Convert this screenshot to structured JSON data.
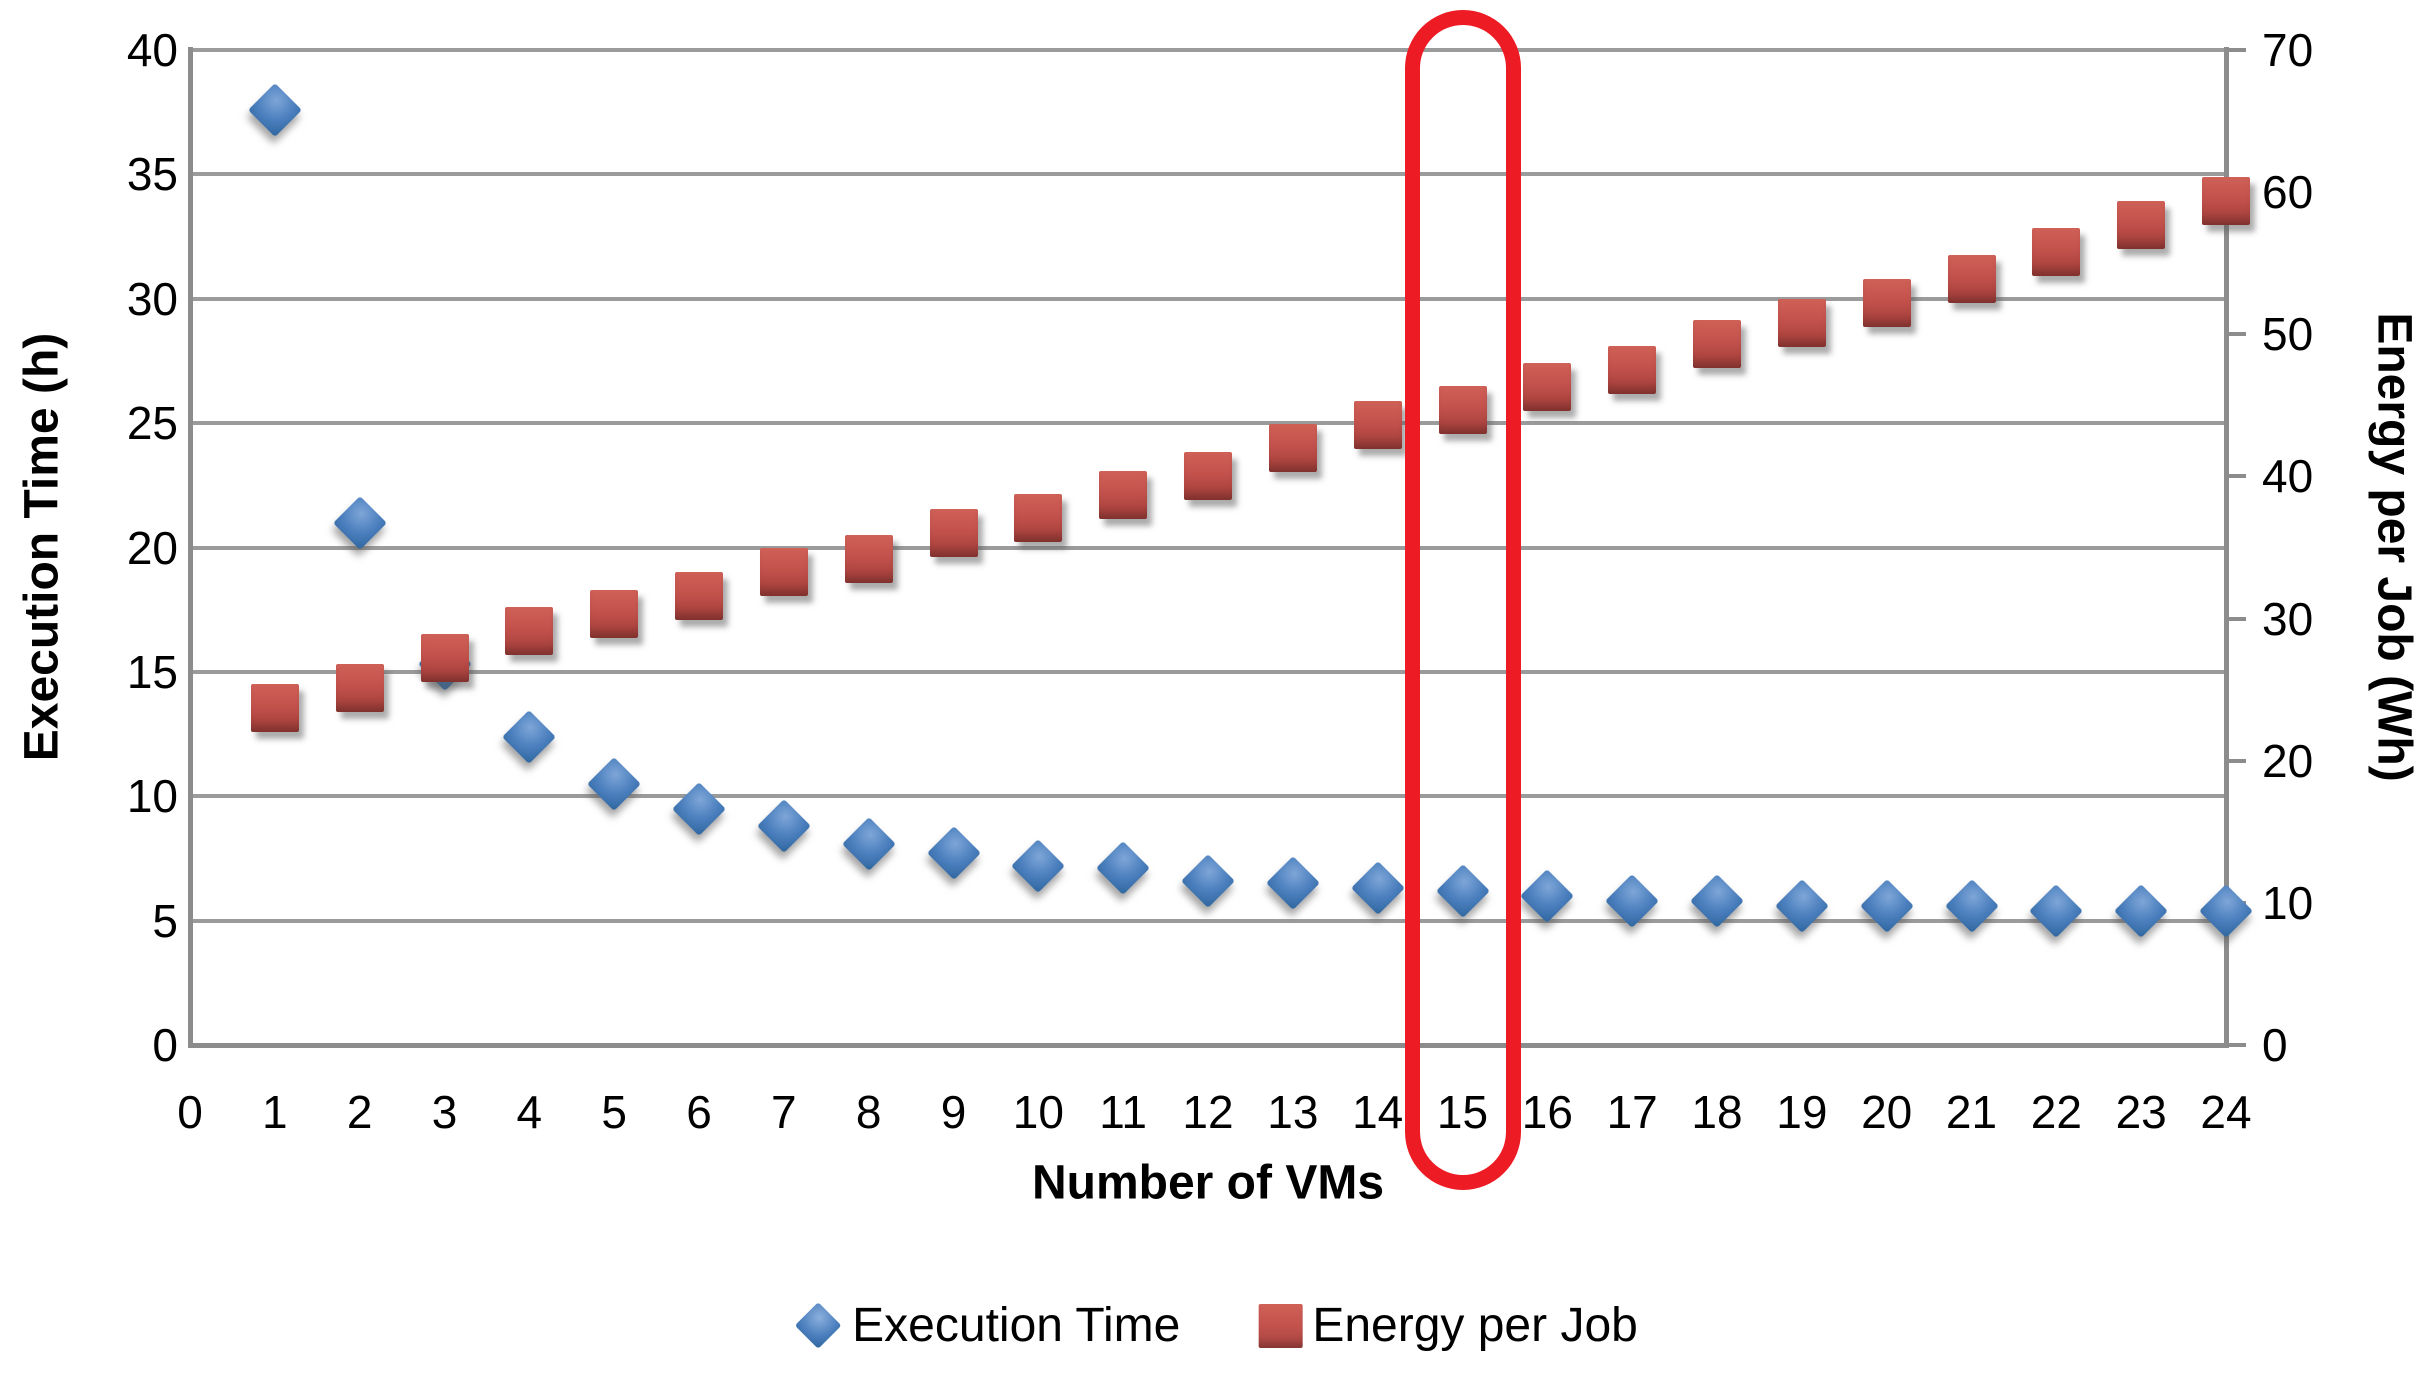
{
  "chart_data": {
    "type": "scatter",
    "title": "",
    "xlabel": "Number of VMs",
    "ylabel_left": "Execution Time (h)",
    "ylabel_right": "Energy per Job (Wh)",
    "x_range": [
      0,
      24
    ],
    "y_left_range": [
      0,
      40
    ],
    "y_right_range": [
      0,
      70
    ],
    "x_ticks": [
      0,
      1,
      2,
      3,
      4,
      5,
      6,
      7,
      8,
      9,
      10,
      11,
      12,
      13,
      14,
      15,
      16,
      17,
      18,
      19,
      20,
      21,
      22,
      23,
      24
    ],
    "y_left_ticks": [
      0,
      5,
      10,
      15,
      20,
      25,
      30,
      35,
      40
    ],
    "y_right_ticks": [
      0,
      10,
      20,
      30,
      40,
      50,
      60,
      70
    ],
    "grid": true,
    "legend_position": "bottom",
    "x": [
      1,
      2,
      3,
      4,
      5,
      6,
      7,
      8,
      9,
      10,
      11,
      12,
      13,
      14,
      15,
      16,
      17,
      18,
      19,
      20,
      21,
      22,
      23,
      24
    ],
    "series": [
      {
        "name": "Execution Time",
        "axis": "left",
        "marker": "diamond",
        "color": "#4a7ebd",
        "values": [
          37.6,
          21.0,
          15.3,
          12.4,
          10.5,
          9.5,
          8.8,
          8.1,
          7.7,
          7.2,
          7.1,
          6.6,
          6.5,
          6.3,
          6.2,
          6.0,
          5.8,
          5.8,
          5.6,
          5.6,
          5.6,
          5.4,
          5.4,
          5.4
        ]
      },
      {
        "name": "Energy per Job",
        "axis": "right",
        "marker": "square",
        "color": "#c0504d",
        "values": [
          23.7,
          25.1,
          27.2,
          29.1,
          30.3,
          31.6,
          33.3,
          34.2,
          36.0,
          37.1,
          38.7,
          40.0,
          42.0,
          43.6,
          44.7,
          46.3,
          47.5,
          49.3,
          50.8,
          52.2,
          53.9,
          55.8,
          57.7,
          59.4
        ]
      }
    ],
    "annotation": {
      "type": "highlight-box",
      "x_value": 15,
      "color": "#ed1c24"
    }
  },
  "legend": {
    "items": [
      {
        "label": "Execution Time"
      },
      {
        "label": "Energy per Job"
      }
    ]
  },
  "colors": {
    "background": "#ffffff",
    "gridline": "#9b9b9b",
    "axis_line": "#8c8c8c",
    "text": "#000000",
    "series_blue": "#4a7ebd",
    "series_red": "#c0504d",
    "highlight_red": "#ed1c24"
  }
}
